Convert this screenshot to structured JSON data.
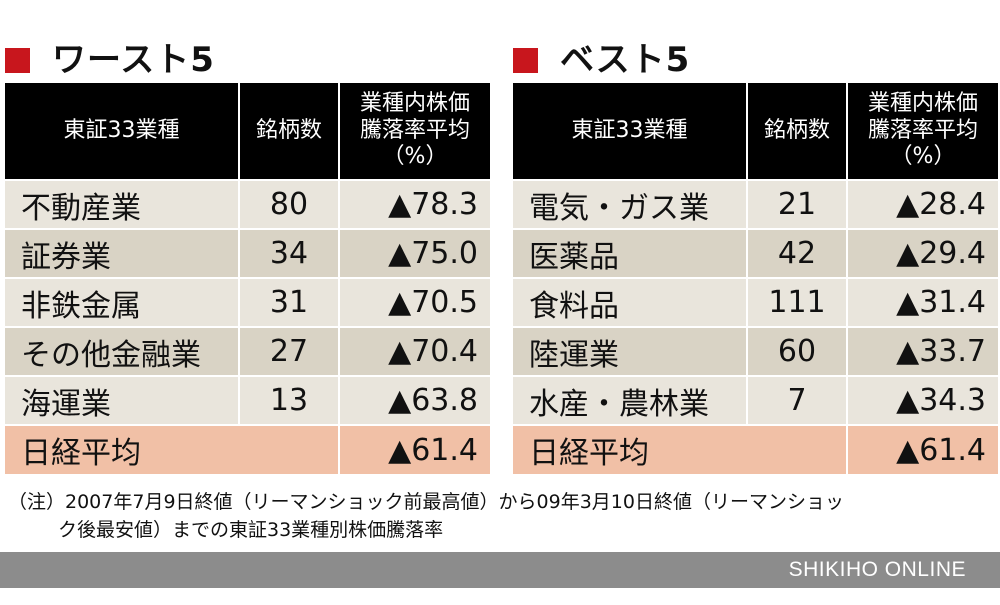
{
  "worst": {
    "title": "ワースト5",
    "headers": [
      "東証33業種",
      "銘柄数",
      "業種内株価",
      "騰落率平均",
      "（%）"
    ],
    "rows": [
      {
        "sector": "不動産業",
        "count": "80",
        "change": "▲78.3"
      },
      {
        "sector": "証券業",
        "count": "34",
        "change": "▲75.0"
      },
      {
        "sector": "非鉄金属",
        "count": "31",
        "change": "▲70.5"
      },
      {
        "sector": "その他金融業",
        "count": "27",
        "change": "▲70.4"
      },
      {
        "sector": "海運業",
        "count": "13",
        "change": "▲63.8"
      }
    ],
    "total": {
      "label": "日経平均",
      "change": "▲61.4"
    }
  },
  "best": {
    "title": "ベスト5",
    "headers": [
      "東証33業種",
      "銘柄数",
      "業種内株価",
      "騰落率平均",
      "（%）"
    ],
    "rows": [
      {
        "sector": "電気・ガス業",
        "count": "21",
        "change": "▲28.4"
      },
      {
        "sector": "医薬品",
        "count": "42",
        "change": "▲29.4"
      },
      {
        "sector": "食料品",
        "count": "111",
        "change": "▲31.4"
      },
      {
        "sector": "陸運業",
        "count": "60",
        "change": "▲33.7"
      },
      {
        "sector": "水産・農林業",
        "count": "7",
        "change": "▲34.3"
      }
    ],
    "total": {
      "label": "日経平均",
      "change": "▲61.4"
    }
  },
  "note": {
    "line1": "（注）2007年7月9日終値（リーマンショック前最高値）から09年3月10日終値（リーマンショッ",
    "line2": "ク後最安値）までの東証33業種別株価騰落率"
  },
  "footer": {
    "brand": "SHIKIHO ONLINE"
  },
  "colors": {
    "accent": "#c8161d",
    "header_bg": "#000000",
    "row_light": "#e9e5dc",
    "row_dark": "#d9d3c5",
    "total_bg": "#f1c0a6",
    "footer_bg": "#8c8c8c"
  }
}
